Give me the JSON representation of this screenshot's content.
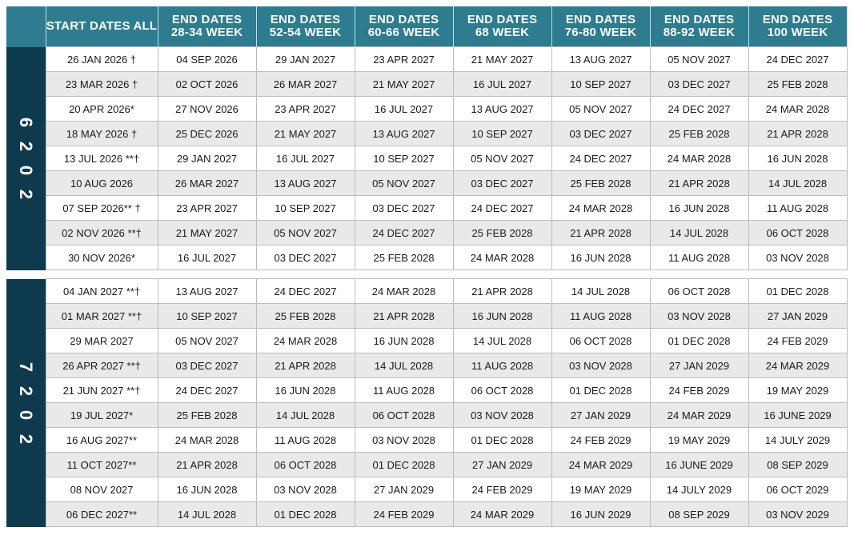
{
  "headers": {
    "start": "START DATES ALL",
    "end_cols": [
      {
        "line1": "END DATES",
        "line2": "28-34 WEEK"
      },
      {
        "line1": "END DATES",
        "line2": "52-54 WEEK"
      },
      {
        "line1": "END DATES",
        "line2": "60-66 WEEK"
      },
      {
        "line1": "END DATES",
        "line2": "68 WEEK"
      },
      {
        "line1": "END DATES",
        "line2": "76-80 WEEK"
      },
      {
        "line1": "END DATES",
        "line2": "88-92 WEEK"
      },
      {
        "line1": "END DATES",
        "line2": "100 WEEK"
      }
    ]
  },
  "sections": [
    {
      "year": "2026",
      "rows": [
        {
          "start": "26 JAN 2026 †",
          "ends": [
            "04 SEP 2026",
            "29 JAN 2027",
            "23 APR 2027",
            "21 MAY 2027",
            "13 AUG 2027",
            "05 NOV 2027",
            "24 DEC 2027"
          ]
        },
        {
          "start": "23 MAR 2026 †",
          "ends": [
            "02 OCT 2026",
            "26 MAR 2027",
            "21 MAY 2027",
            "16 JUL 2027",
            "10 SEP 2027",
            "03 DEC 2027",
            "25 FEB 2028"
          ]
        },
        {
          "start": "20 APR 2026*",
          "ends": [
            "27 NOV 2026",
            "23 APR 2027",
            "16 JUL 2027",
            "13 AUG 2027",
            "05 NOV 2027",
            "24 DEC 2027",
            "24 MAR 2028"
          ]
        },
        {
          "start": "18 MAY 2026 †",
          "ends": [
            "25 DEC 2026",
            "21 MAY 2027",
            "13 AUG 2027",
            "10 SEP 2027",
            "03 DEC 2027",
            "25 FEB 2028",
            "21 APR 2028"
          ]
        },
        {
          "start": "13 JUL 2026 **†",
          "ends": [
            "29 JAN 2027",
            "16 JUL 2027",
            "10 SEP 2027",
            "05 NOV 2027",
            "24 DEC 2027",
            "24 MAR 2028",
            "16 JUN 2028"
          ]
        },
        {
          "start": "10 AUG 2026",
          "ends": [
            "26 MAR 2027",
            "13 AUG 2027",
            "05 NOV 2027",
            "03 DEC 2027",
            "25 FEB 2028",
            "21 APR 2028",
            "14 JUL 2028"
          ]
        },
        {
          "start": "07 SEP 2026** †",
          "ends": [
            "23 APR 2027",
            "10 SEP 2027",
            "03 DEC 2027",
            "24 DEC 2027",
            "24 MAR 2028",
            "16 JUN 2028",
            "11 AUG 2028"
          ]
        },
        {
          "start": "02 NOV 2026 **†",
          "ends": [
            "21 MAY 2027",
            "05 NOV 2027",
            "24 DEC 2027",
            "25 FEB 2028",
            "21 APR 2028",
            "14 JUL 2028",
            "06 OCT 2028"
          ]
        },
        {
          "start": "30 NOV 2026*",
          "ends": [
            "16 JUL 2027",
            "03 DEC 2027",
            "25 FEB 2028",
            "24 MAR 2028",
            "16 JUN 2028",
            "11 AUG 2028",
            "03 NOV 2028"
          ]
        }
      ]
    },
    {
      "year": "2027",
      "rows": [
        {
          "start": "04 JAN 2027 **†",
          "ends": [
            "13 AUG 2027",
            "24 DEC 2027",
            "24 MAR 2028",
            "21 APR 2028",
            "14 JUL 2028",
            "06 OCT 2028",
            "01 DEC 2028"
          ]
        },
        {
          "start": "01 MAR 2027 **†",
          "ends": [
            "10 SEP 2027",
            "25 FEB 2028",
            "21 APR 2028",
            "16 JUN 2028",
            "11 AUG 2028",
            "03 NOV 2028",
            "27 JAN 2029"
          ]
        },
        {
          "start": "29 MAR 2027",
          "ends": [
            "05 NOV 2027",
            "24 MAR 2028",
            "16 JUN 2028",
            "14 JUL 2028",
            "06 OCT 2028",
            "01 DEC 2028",
            "24 FEB 2029"
          ]
        },
        {
          "start": "26 APR 2027 **†",
          "ends": [
            "03 DEC 2027",
            "21 APR 2028",
            "14 JUL 2028",
            "11 AUG 2028",
            "03 NOV 2028",
            "27 JAN 2029",
            "24 MAR 2029"
          ]
        },
        {
          "start": "21 JUN 2027 **†",
          "ends": [
            "24 DEC 2027",
            "16 JUN 2028",
            "11 AUG 2028",
            "06 OCT 2028",
            "01 DEC 2028",
            "24 FEB 2029",
            "19 MAY 2029"
          ]
        },
        {
          "start": "19 JUL 2027*",
          "ends": [
            "25 FEB 2028",
            "14 JUL 2028",
            "06 OCT 2028",
            "03 NOV 2028",
            "27 JAN 2029",
            "24 MAR 2029",
            "16 JUNE 2029"
          ]
        },
        {
          "start": "16 AUG 2027**",
          "ends": [
            "24 MAR 2028",
            "11 AUG 2028",
            "03 NOV 2028",
            "01 DEC 2028",
            "24 FEB 2029",
            "19 MAY 2029",
            "14 JULY 2029"
          ]
        },
        {
          "start": "11 OCT 2027**",
          "ends": [
            "21 APR 2028",
            "06 OCT 2028",
            "01 DEC 2028",
            "27 JAN 2029",
            "24 MAR 2029",
            "16 JUNE 2029",
            "08 SEP 2029"
          ]
        },
        {
          "start": "08 NOV 2027",
          "ends": [
            "16 JUN 2028",
            "03 NOV 2028",
            "27 JAN 2029",
            "24 FEB 2029",
            "19 MAY 2029",
            "14 JULY 2029",
            "06 OCT 2029"
          ]
        },
        {
          "start": "06 DEC 2027**",
          "ends": [
            "14 JUL 2028",
            "01 DEC 2028",
            "24 FEB 2029",
            "24 MAR 2029",
            "16 JUN 2029",
            "08 SEP 2029",
            "03 NOV 2029"
          ]
        }
      ]
    }
  ],
  "colors": {
    "header_bg": "#2d7c8f",
    "year_bg": "#0e3a4d",
    "alt_row_bg": "#e9e9e9"
  }
}
